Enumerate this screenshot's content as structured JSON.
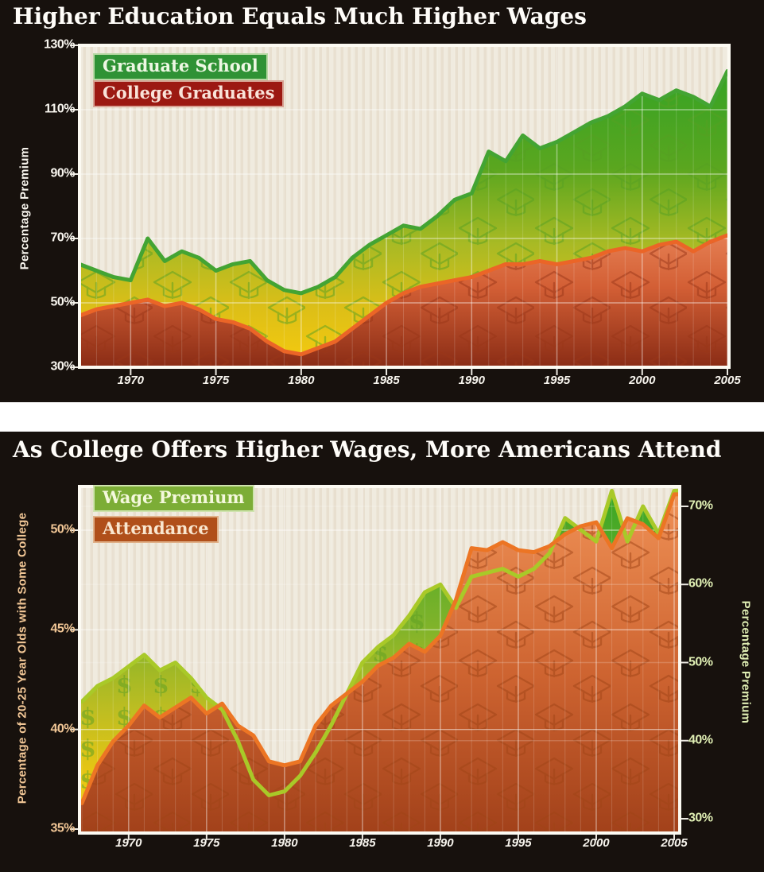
{
  "page": {
    "background_color": "#ffffff",
    "panel_color": "#17110d",
    "plot_background": "#f0ebdf",
    "plot_stripe_color": "#e4dbca",
    "plot_border_color": "#fcfaf2",
    "gridline_color": "#ffffff"
  },
  "charts": [
    {
      "title": "Higher Education Equals Much Higher Wages",
      "legend": [
        {
          "label": "Graduate School",
          "bg_color": "#2f9235",
          "border_color": "#b7d8a3",
          "text_color": "#edf7e3"
        },
        {
          "label": "College Graduates",
          "bg_color": "#9c1912",
          "border_color": "#d8a193",
          "text_color": "#f9e3d9"
        }
      ],
      "y_axis": {
        "title": "Percentage Premium",
        "text_color": "#f8f5ee",
        "ticks": [
          {
            "value": 130,
            "label": "130%"
          },
          {
            "value": 110,
            "label": "110%"
          },
          {
            "value": 90,
            "label": "90%"
          },
          {
            "value": 70,
            "label": "70%"
          },
          {
            "value": 50,
            "label": "50%"
          },
          {
            "value": 30,
            "label": "30%"
          }
        ]
      },
      "x_axis": {
        "text_color": "#f8f5ee",
        "ticks": [
          {
            "value": 1970,
            "label": "1970"
          },
          {
            "value": 1975,
            "label": "1975"
          },
          {
            "value": 1980,
            "label": "1980"
          },
          {
            "value": 1985,
            "label": "1985"
          },
          {
            "value": 1990,
            "label": "1990"
          },
          {
            "value": 1995,
            "label": "1995"
          },
          {
            "value": 2000,
            "label": "2000"
          },
          {
            "value": 2005,
            "label": "2005"
          }
        ]
      },
      "chart_data": {
        "type": "area",
        "title": "Higher Education Equals Much Higher Wages",
        "ylabel": "Percentage Premium",
        "ylim": [
          30,
          130
        ],
        "x": [
          1967,
          1968,
          1969,
          1970,
          1971,
          1972,
          1973,
          1974,
          1975,
          1976,
          1977,
          1978,
          1979,
          1980,
          1981,
          1982,
          1983,
          1984,
          1985,
          1986,
          1987,
          1988,
          1989,
          1990,
          1991,
          1992,
          1993,
          1994,
          1995,
          1996,
          1997,
          1998,
          1999,
          2000,
          2001,
          2002,
          2003,
          2004,
          2005
        ],
        "series": [
          {
            "name": "Graduate School",
            "values": [
              62,
              60,
              58,
              57,
              70,
              63,
              66,
              64,
              60,
              62,
              63,
              57,
              54,
              53,
              55,
              58,
              64,
              68,
              71,
              74,
              73,
              77,
              82,
              84,
              97,
              94,
              102,
              98,
              100,
              103,
              106,
              108,
              111,
              115,
              113,
              116,
              114,
              111,
              122
            ],
            "line_color": "#43a433",
            "fill_stops": [
              [
                "0%",
                "#2ba226"
              ],
              [
                "38%",
                "#5aa61f"
              ],
              [
                "62%",
                "#a9ba24"
              ],
              [
                "82%",
                "#ddbf17"
              ],
              [
                "100%",
                "#f6cb0e"
              ]
            ],
            "pattern": "graduation-cap",
            "pattern_color": "#55a021"
          },
          {
            "name": "College Graduates",
            "values": [
              46,
              48,
              49,
              50,
              51,
              49,
              50,
              48,
              45,
              44,
              42,
              38,
              35,
              34,
              36,
              38,
              42,
              46,
              50,
              53,
              55,
              56,
              57,
              58,
              60,
              62,
              62,
              63,
              62,
              63,
              64,
              66,
              67,
              66,
              68,
              69,
              66,
              69,
              71
            ],
            "line_color": "#eb6527",
            "fill_stops": [
              [
                "50%",
                "#ef9163"
              ],
              [
                "75%",
                "#d35f35"
              ],
              [
                "100%",
                "#8a2c15"
              ]
            ],
            "pattern": "graduation-cap",
            "pattern_color": "#993618"
          }
        ]
      }
    },
    {
      "title": "As College Offers Higher Wages, More Americans Attend",
      "legend": [
        {
          "label": "Wage Premium",
          "bg_color": "#7cad36",
          "border_color": "#cfe3ae",
          "text_color": "#f4f8dc"
        },
        {
          "label": "Attendance",
          "bg_color": "#b04f1a",
          "border_color": "#e0b088",
          "text_color": "#f9e6cf"
        }
      ],
      "y_axis_left": {
        "title": "Percentage of 20-25 Year Olds with Some College",
        "text_color": "#f2c796",
        "ticks": [
          {
            "value": 50,
            "label": "50%"
          },
          {
            "value": 45,
            "label": "45%"
          },
          {
            "value": 40,
            "label": "40%"
          },
          {
            "value": 35,
            "label": "35%"
          }
        ]
      },
      "y_axis_right": {
        "title": "Percentage Premium",
        "text_color": "#e0efb4",
        "ticks": [
          {
            "value": 70,
            "label": "70%"
          },
          {
            "value": 60,
            "label": "60%"
          },
          {
            "value": 50,
            "label": "50%"
          },
          {
            "value": 40,
            "label": "40%"
          },
          {
            "value": 30,
            "label": "30%"
          }
        ]
      },
      "x_axis": {
        "text_color": "#f8f5ee",
        "ticks": [
          {
            "value": 1970,
            "label": "1970"
          },
          {
            "value": 1975,
            "label": "1975"
          },
          {
            "value": 1980,
            "label": "1980"
          },
          {
            "value": 1985,
            "label": "1985"
          },
          {
            "value": 1990,
            "label": "1990"
          },
          {
            "value": 1995,
            "label": "1995"
          },
          {
            "value": 2000,
            "label": "2000"
          },
          {
            "value": 2005,
            "label": "2005"
          }
        ]
      },
      "chart_data": {
        "type": "area",
        "title": "As College Offers Higher Wages, More Americans Attend",
        "ylabel_left": "Percentage of 20-25 Year Olds with Some College",
        "ylabel_right": "Percentage Premium",
        "ylim_left": [
          35,
          52
        ],
        "ylim_right": [
          30,
          72
        ],
        "x": [
          1967,
          1968,
          1969,
          1970,
          1971,
          1972,
          1973,
          1974,
          1975,
          1976,
          1977,
          1978,
          1979,
          1980,
          1981,
          1982,
          1983,
          1984,
          1985,
          1986,
          1987,
          1988,
          1989,
          1990,
          1991,
          1992,
          1993,
          1994,
          1995,
          1996,
          1997,
          1998,
          1999,
          2000,
          2001,
          2002,
          2003,
          2004,
          2005
        ],
        "series": [
          {
            "name": "Wage Premium",
            "axis": "right",
            "values": [
              45,
              47,
              48,
              49.5,
              51,
              49,
              50,
              48,
              45.5,
              44,
              40,
              35,
              33,
              33.5,
              35.5,
              38.5,
              42,
              46,
              50,
              52,
              53.5,
              56,
              59,
              60,
              57,
              61,
              61.5,
              62,
              61,
              62,
              64,
              68.5,
              67,
              65.5,
              72,
              65.5,
              70,
              66.5,
              72
            ],
            "line_color": "#a9c928",
            "fill_stops": [
              [
                "0%",
                "#35a526"
              ],
              [
                "40%",
                "#7fb32a"
              ],
              [
                "64%",
                "#bcbd22"
              ],
              [
                "82%",
                "#e6c513"
              ],
              [
                "100%",
                "#f4cd10"
              ]
            ],
            "pattern": "dollar-sign",
            "pattern_color": "#61a123"
          },
          {
            "name": "Attendance",
            "axis": "left",
            "values": [
              36.3,
              38.2,
              39.4,
              40.2,
              41.2,
              40.6,
              41.1,
              41.6,
              40.8,
              41.3,
              40.2,
              39.7,
              38.4,
              38.2,
              38.4,
              40.2,
              41.2,
              41.8,
              42.4,
              43.2,
              43.6,
              44.3,
              43.9,
              44.7,
              46.5,
              49.1,
              49,
              49.4,
              49,
              48.9,
              49.2,
              49.8,
              50.2,
              50.4,
              49.1,
              50.6,
              50.3,
              49.6,
              51.8
            ],
            "line_color": "#ec7524",
            "fill_stops": [
              [
                "0%",
                "#f09a5e"
              ],
              [
                "10%",
                "#ea8a50"
              ],
              [
                "55%",
                "#cd6330"
              ],
              [
                "100%",
                "#a2411a"
              ]
            ],
            "pattern": "graduation-cap",
            "pattern_color": "#a04416"
          }
        ]
      }
    }
  ]
}
